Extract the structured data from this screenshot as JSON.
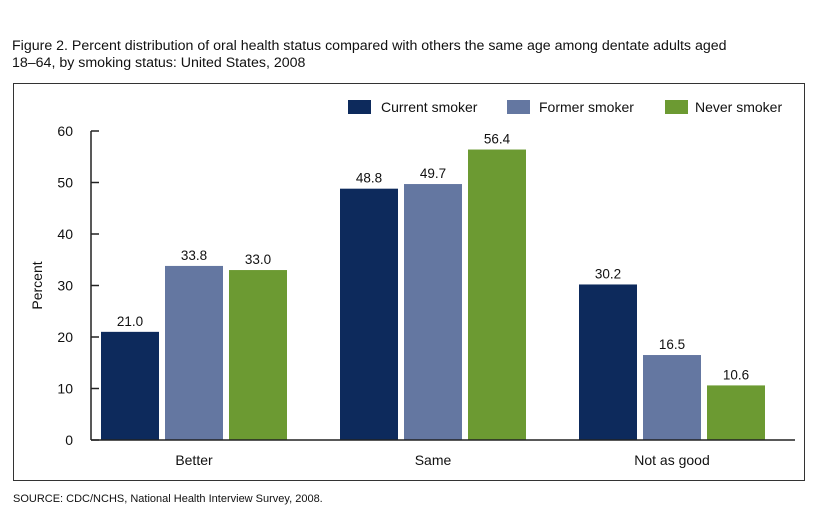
{
  "title_lines": [
    "Figure 2. Percent distribution of oral health status compared with others the same age among dentate adults aged",
    "18–64, by smoking status: United States, 2008"
  ],
  "source": "SOURCE: CDC/NCHS, National Health Interview Survey, 2008.",
  "chart_data": {
    "type": "bar",
    "title": "Figure 2. Percent distribution of oral health status compared with others the same age among dentate adults aged 18–64, by smoking status: United States, 2008",
    "xlabel": "",
    "ylabel": "Percent",
    "ylim": [
      0,
      60
    ],
    "yticks": [
      0,
      10,
      20,
      30,
      40,
      50,
      60
    ],
    "ytick_labels": [
      "0",
      "10",
      "20",
      "30",
      "40",
      "50",
      "60"
    ],
    "grid": false,
    "legend_position": "top-right",
    "categories": [
      "Better",
      "Same",
      "Not as good"
    ],
    "series": [
      {
        "name": "Current smoker",
        "color": "#0d2a5c",
        "values": [
          21.0,
          48.8,
          30.2
        ],
        "labels": [
          "21.0",
          "48.8",
          "30.2"
        ]
      },
      {
        "name": "Former smoker",
        "color": "#6477a1",
        "values": [
          33.8,
          49.7,
          16.5
        ],
        "labels": [
          "33.8",
          "49.7",
          "16.5"
        ]
      },
      {
        "name": "Never smoker",
        "color": "#6c9a32",
        "values": [
          33.0,
          56.4,
          10.6
        ],
        "labels": [
          "33.0",
          "56.4",
          "10.6"
        ]
      }
    ]
  }
}
